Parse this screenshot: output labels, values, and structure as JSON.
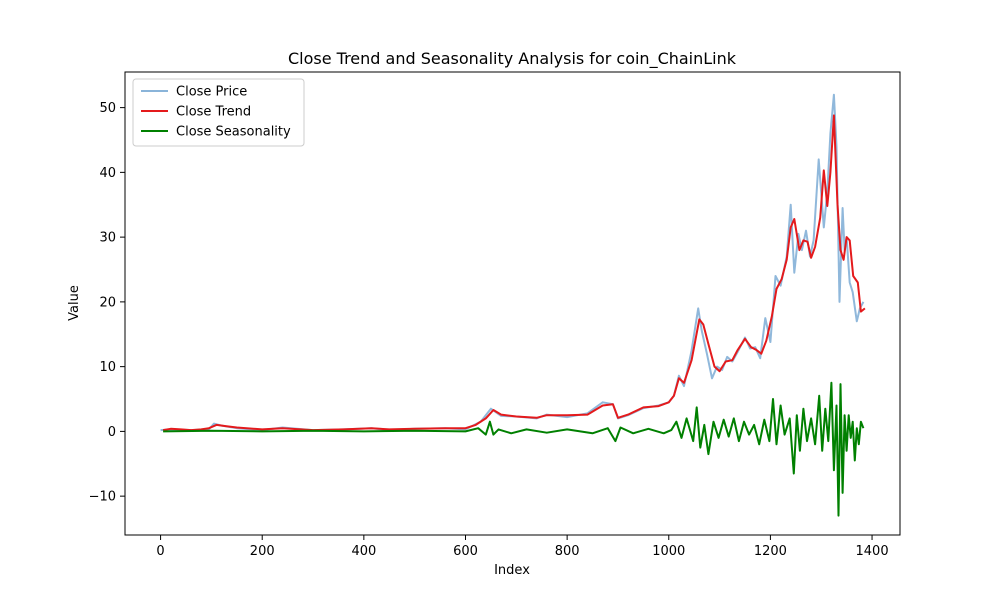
{
  "chart_data": {
    "type": "line",
    "title": "Close Trend and Seasonality Analysis for coin_ChainLink",
    "xlabel": "Index",
    "ylabel": "Value",
    "xlim": [
      -70,
      1455
    ],
    "ylim": [
      -16,
      55.5
    ],
    "xticks": [
      0,
      200,
      400,
      600,
      800,
      1000,
      1200,
      1400
    ],
    "yticks": [
      -10,
      0,
      10,
      20,
      30,
      40,
      50
    ],
    "xtick_labels": [
      "0",
      "200",
      "400",
      "600",
      "800",
      "1000",
      "1200",
      "1400"
    ],
    "ytick_labels": [
      "−10",
      "0",
      "10",
      "20",
      "30",
      "40",
      "50"
    ],
    "legend": {
      "position": "top-left"
    },
    "grid": false,
    "series": [
      {
        "name": "Close Price",
        "color": "#8ab4d9",
        "x": [
          0,
          20,
          60,
          95,
          105,
          120,
          150,
          200,
          240,
          300,
          360,
          415,
          450,
          500,
          560,
          600,
          630,
          650,
          670,
          700,
          740,
          760,
          800,
          840,
          870,
          890,
          900,
          920,
          950,
          980,
          1000,
          1010,
          1020,
          1030,
          1045,
          1058,
          1065,
          1075,
          1085,
          1095,
          1105,
          1115,
          1125,
          1135,
          1150,
          1160,
          1170,
          1180,
          1190,
          1200,
          1210,
          1220,
          1232,
          1240,
          1247,
          1255,
          1262,
          1270,
          1278,
          1285,
          1295,
          1305,
          1312,
          1318,
          1325,
          1330,
          1336,
          1342,
          1346,
          1350,
          1356,
          1362,
          1370,
          1376,
          1383
        ],
        "y": [
          0.2,
          0.3,
          0.2,
          0.3,
          1.2,
          0.9,
          0.5,
          0.2,
          0.6,
          0.2,
          0.3,
          0.5,
          0.2,
          0.4,
          0.5,
          0.3,
          1.5,
          3.5,
          2.4,
          2.3,
          2.0,
          2.6,
          2.2,
          2.8,
          4.5,
          4.2,
          2.0,
          2.5,
          3.6,
          4.0,
          4.5,
          5.5,
          8.6,
          7.0,
          12.5,
          19.0,
          15.5,
          12.0,
          8.2,
          10.0,
          9.5,
          11.5,
          10.8,
          12.2,
          14.5,
          12.8,
          13.0,
          11.3,
          17.5,
          13.8,
          24.0,
          22.5,
          27.0,
          35.0,
          24.5,
          30.5,
          28.0,
          31.0,
          27.0,
          29.5,
          42.0,
          31.5,
          37.0,
          46.0,
          52.0,
          44.0,
          20.0,
          34.5,
          28.0,
          30.0,
          23.0,
          21.5,
          17.0,
          19.0,
          20.0
        ]
      },
      {
        "name": "Close Trend",
        "color": "#e41a1c",
        "x": [
          5,
          20,
          40,
          60,
          80,
          95,
          110,
          130,
          150,
          200,
          240,
          300,
          360,
          415,
          450,
          500,
          560,
          600,
          620,
          640,
          655,
          670,
          700,
          740,
          760,
          800,
          840,
          870,
          890,
          900,
          920,
          950,
          980,
          1000,
          1010,
          1020,
          1030,
          1045,
          1060,
          1068,
          1078,
          1090,
          1100,
          1112,
          1125,
          1135,
          1150,
          1162,
          1172,
          1182,
          1192,
          1203,
          1212,
          1222,
          1232,
          1240,
          1247,
          1257,
          1265,
          1273,
          1280,
          1288,
          1298,
          1305,
          1312,
          1318,
          1325,
          1332,
          1338,
          1344,
          1350,
          1356,
          1363,
          1372,
          1378,
          1386
        ],
        "y": [
          0.2,
          0.4,
          0.3,
          0.2,
          0.3,
          0.5,
          1.0,
          0.8,
          0.6,
          0.3,
          0.5,
          0.2,
          0.3,
          0.5,
          0.3,
          0.4,
          0.5,
          0.5,
          1.0,
          2.0,
          3.3,
          2.6,
          2.3,
          2.1,
          2.5,
          2.5,
          2.6,
          4.0,
          4.2,
          2.1,
          2.6,
          3.7,
          3.9,
          4.5,
          5.5,
          8.2,
          7.5,
          11.0,
          17.3,
          16.5,
          13.5,
          10.0,
          9.3,
          10.8,
          11.0,
          12.5,
          14.3,
          13.0,
          12.6,
          12.0,
          14.0,
          17.8,
          22.0,
          23.5,
          26.5,
          31.5,
          32.8,
          28.0,
          29.5,
          29.3,
          26.8,
          28.5,
          33.0,
          40.3,
          34.8,
          40.0,
          48.8,
          35.0,
          28.0,
          26.5,
          30.0,
          29.5,
          24.0,
          23.0,
          18.5,
          19.0
        ]
      },
      {
        "name": "Close Seasonality",
        "color": "#008000",
        "x": [
          5,
          100,
          200,
          300,
          400,
          500,
          600,
          625,
          640,
          648,
          655,
          665,
          690,
          720,
          760,
          800,
          850,
          880,
          895,
          905,
          930,
          960,
          990,
          1005,
          1015,
          1025,
          1035,
          1048,
          1055,
          1062,
          1070,
          1078,
          1088,
          1098,
          1108,
          1118,
          1128,
          1138,
          1148,
          1158,
          1168,
          1178,
          1188,
          1198,
          1205,
          1212,
          1220,
          1228,
          1238,
          1246,
          1252,
          1258,
          1265,
          1272,
          1280,
          1288,
          1296,
          1302,
          1308,
          1314,
          1320,
          1325,
          1330,
          1334,
          1338,
          1342,
          1346,
          1350,
          1354,
          1358,
          1362,
          1366,
          1370,
          1374,
          1378,
          1383
        ],
        "y": [
          0,
          0.1,
          0,
          0.1,
          0,
          0.1,
          0,
          0.5,
          -0.5,
          1.5,
          -0.5,
          0.3,
          -0.3,
          0.3,
          -0.2,
          0.3,
          -0.3,
          0.5,
          -1.5,
          0.6,
          -0.3,
          0.4,
          -0.3,
          0.2,
          1.5,
          -1.0,
          2.0,
          -1.5,
          3.7,
          -2.5,
          1.0,
          -3.5,
          1.5,
          -1.0,
          1.8,
          -0.8,
          2.0,
          -1.5,
          1.5,
          -0.5,
          1.0,
          -2.0,
          1.8,
          -1.5,
          5.0,
          -2.0,
          4.0,
          -0.5,
          2.0,
          -6.5,
          2.5,
          -3.0,
          3.5,
          -1.5,
          2.0,
          -2.0,
          5.5,
          -3.0,
          3.5,
          -1.5,
          7.5,
          -6.0,
          4.0,
          -13.0,
          7.3,
          -9.5,
          2.5,
          -3.0,
          2.5,
          -1.0,
          1.5,
          -4.5,
          0.5,
          -2.0,
          1.5,
          0.5
        ]
      }
    ]
  }
}
